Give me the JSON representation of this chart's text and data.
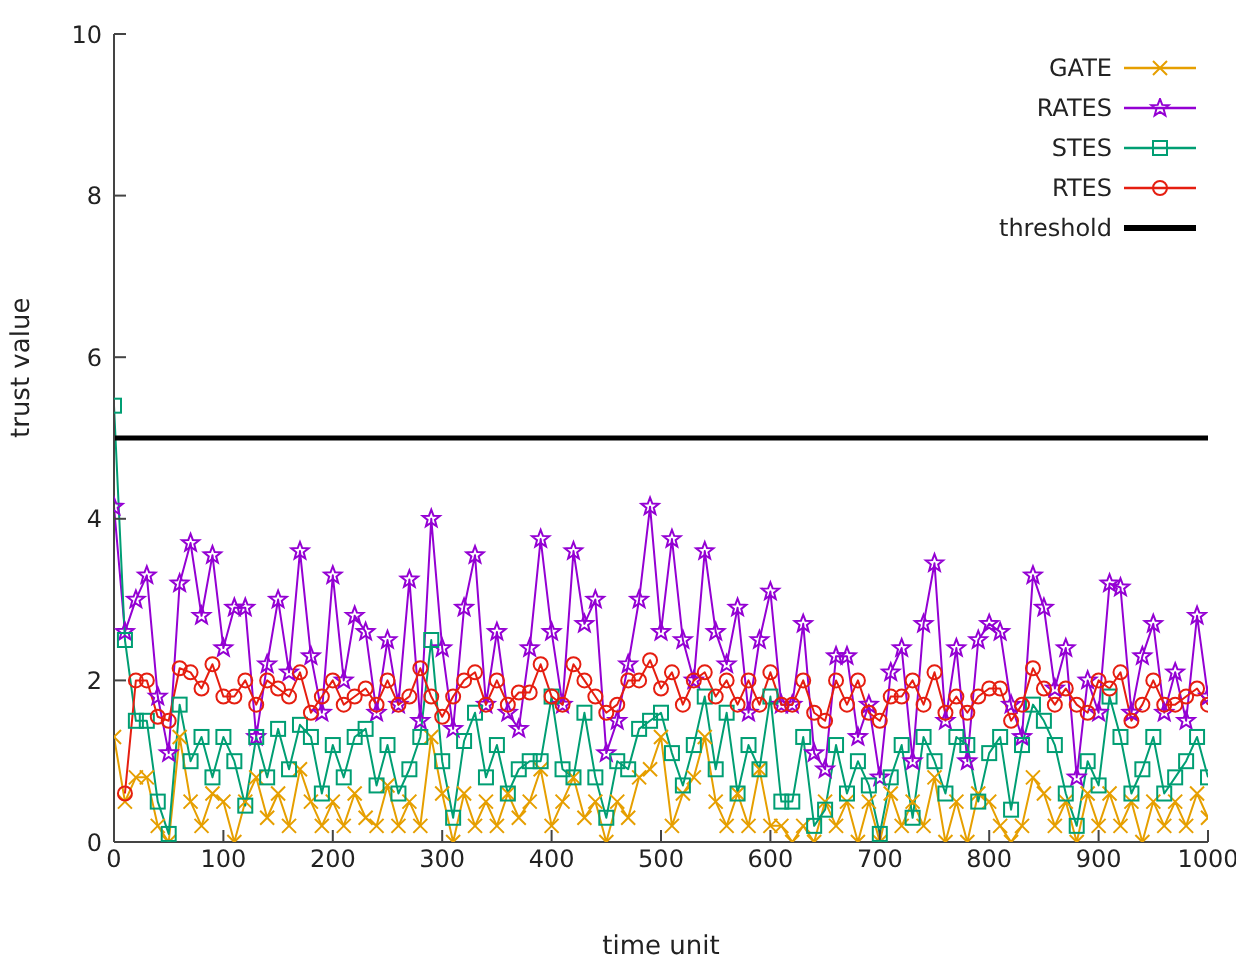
{
  "chart_data": {
    "type": "line",
    "xlabel": "time unit",
    "ylabel": "trust value",
    "xlim": [
      0,
      1000
    ],
    "ylim": [
      0,
      10
    ],
    "xticks": [
      0,
      100,
      200,
      300,
      400,
      500,
      600,
      700,
      800,
      900,
      1000
    ],
    "yticks": [
      0,
      2,
      4,
      6,
      8,
      10
    ],
    "grid": false,
    "legend": "top right",
    "line_style": "solid",
    "x": [
      0,
      10,
      20,
      30,
      40,
      50,
      60,
      70,
      80,
      90,
      100,
      110,
      120,
      130,
      140,
      150,
      160,
      170,
      180,
      190,
      200,
      210,
      220,
      230,
      240,
      250,
      260,
      270,
      280,
      290,
      300,
      310,
      320,
      330,
      340,
      350,
      360,
      370,
      380,
      390,
      400,
      410,
      420,
      430,
      440,
      450,
      460,
      470,
      480,
      490,
      500,
      510,
      520,
      530,
      540,
      550,
      560,
      570,
      580,
      590,
      600,
      610,
      620,
      630,
      640,
      650,
      660,
      670,
      680,
      690,
      700,
      710,
      720,
      730,
      740,
      750,
      760,
      770,
      780,
      790,
      800,
      810,
      820,
      830,
      840,
      850,
      860,
      870,
      880,
      890,
      900,
      910,
      920,
      930,
      940,
      950,
      960,
      970,
      980,
      990,
      1000
    ],
    "series": [
      {
        "name": "GATE",
        "color": "#e69f00",
        "marker": "cross",
        "values": [
          1.3,
          0.5,
          0.8,
          0.8,
          0.2,
          0.0,
          1.3,
          0.5,
          0.2,
          0.6,
          0.5,
          0.0,
          0.5,
          0.8,
          0.3,
          0.6,
          0.2,
          0.9,
          0.5,
          0.2,
          0.5,
          0.2,
          0.6,
          0.3,
          0.2,
          0.7,
          0.2,
          0.5,
          0.2,
          1.3,
          0.6,
          0.0,
          0.6,
          0.2,
          0.5,
          0.2,
          0.6,
          0.3,
          0.5,
          0.9,
          0.2,
          0.5,
          0.8,
          0.3,
          0.5,
          0.0,
          0.5,
          0.3,
          0.8,
          0.9,
          1.3,
          0.2,
          0.6,
          0.8,
          1.3,
          0.5,
          0.2,
          0.6,
          0.2,
          0.9,
          0.2,
          0.2,
          0.0,
          0.2,
          0.0,
          0.5,
          0.2,
          0.5,
          0.0,
          0.5,
          0.0,
          0.6,
          0.2,
          0.5,
          0.2,
          0.8,
          0.0,
          0.5,
          0.0,
          0.6,
          0.5,
          0.2,
          0.0,
          0.2,
          0.8,
          0.6,
          0.2,
          0.5,
          0.0,
          0.6,
          0.2,
          0.6,
          0.2,
          0.5,
          0.0,
          0.5,
          0.2,
          0.5,
          0.2,
          0.6,
          0.3
        ]
      },
      {
        "name": "RATES",
        "color": "#9400d3",
        "marker": "star",
        "values": [
          4.15,
          2.6,
          3.0,
          3.3,
          1.8,
          1.1,
          3.2,
          3.7,
          2.8,
          3.55,
          2.4,
          2.9,
          2.9,
          1.3,
          2.2,
          3.0,
          2.1,
          3.6,
          2.3,
          1.6,
          3.3,
          2.0,
          2.8,
          2.6,
          1.6,
          2.5,
          1.7,
          3.25,
          1.5,
          4.0,
          2.4,
          1.4,
          2.9,
          3.55,
          1.7,
          2.6,
          1.6,
          1.4,
          2.4,
          3.75,
          2.6,
          1.7,
          3.6,
          2.7,
          3.0,
          1.1,
          1.5,
          2.2,
          3.0,
          4.15,
          2.6,
          3.75,
          2.5,
          2.0,
          3.6,
          2.6,
          2.2,
          2.9,
          1.6,
          2.5,
          3.1,
          1.7,
          1.7,
          2.7,
          1.1,
          0.9,
          2.3,
          2.3,
          1.3,
          1.7,
          0.8,
          2.1,
          2.4,
          1.0,
          2.7,
          3.45,
          1.5,
          2.4,
          1.0,
          2.5,
          2.7,
          2.6,
          1.7,
          1.3,
          3.3,
          2.9,
          1.9,
          2.4,
          0.8,
          2.0,
          1.6,
          3.2,
          3.15,
          1.6,
          2.3,
          2.7,
          1.6,
          2.1,
          1.5,
          2.8,
          1.8
        ]
      },
      {
        "name": "STES",
        "color": "#009e73",
        "marker": "square",
        "values": [
          5.4,
          2.5,
          1.5,
          1.5,
          0.5,
          0.1,
          1.7,
          1.0,
          1.3,
          0.8,
          1.3,
          1.0,
          0.45,
          1.3,
          0.8,
          1.4,
          0.9,
          1.45,
          1.3,
          0.6,
          1.2,
          0.8,
          1.3,
          1.4,
          0.7,
          1.2,
          0.6,
          0.9,
          1.3,
          2.5,
          1.0,
          0.3,
          1.25,
          1.6,
          0.8,
          1.2,
          0.6,
          0.9,
          1.0,
          1.0,
          1.8,
          0.9,
          0.8,
          1.6,
          0.8,
          0.3,
          1.0,
          0.9,
          1.4,
          1.5,
          1.6,
          1.1,
          0.7,
          1.2,
          1.8,
          0.9,
          1.6,
          0.6,
          1.2,
          0.9,
          1.8,
          0.5,
          0.5,
          1.3,
          0.2,
          0.4,
          1.2,
          0.6,
          1.0,
          0.7,
          0.1,
          0.8,
          1.2,
          0.3,
          1.3,
          1.0,
          0.6,
          1.3,
          1.2,
          0.5,
          1.1,
          1.3,
          0.4,
          1.2,
          1.7,
          1.5,
          1.2,
          0.6,
          0.2,
          1.0,
          0.7,
          1.8,
          1.3,
          0.6,
          0.9,
          1.3,
          0.6,
          0.8,
          1.0,
          1.3,
          0.8
        ]
      },
      {
        "name": "RTES",
        "color": "#e51e10",
        "marker": "circle",
        "values": [
          null,
          0.6,
          2.0,
          2.0,
          1.55,
          1.5,
          2.15,
          2.1,
          1.9,
          2.2,
          1.8,
          1.8,
          2.0,
          1.7,
          2.0,
          1.9,
          1.8,
          2.1,
          1.6,
          1.8,
          2.0,
          1.7,
          1.8,
          1.9,
          1.7,
          2.0,
          1.7,
          1.8,
          2.15,
          1.8,
          1.55,
          1.8,
          2.0,
          2.1,
          1.7,
          2.0,
          1.7,
          1.85,
          1.85,
          2.2,
          1.8,
          1.7,
          2.2,
          2.0,
          1.8,
          1.6,
          1.7,
          2.0,
          2.0,
          2.25,
          1.9,
          2.1,
          1.7,
          2.0,
          2.1,
          1.8,
          2.0,
          1.7,
          2.0,
          1.7,
          2.1,
          1.7,
          1.7,
          2.0,
          1.6,
          1.5,
          2.0,
          1.7,
          2.0,
          1.6,
          1.5,
          1.8,
          1.8,
          2.0,
          1.7,
          2.1,
          1.6,
          1.8,
          1.6,
          1.8,
          1.9,
          1.9,
          1.5,
          1.7,
          2.15,
          1.9,
          1.7,
          1.9,
          1.7,
          1.6,
          2.0,
          1.9,
          2.1,
          1.5,
          1.7,
          2.0,
          1.7,
          1.7,
          1.8,
          1.9,
          1.7
        ]
      },
      {
        "name": "threshold",
        "color": "#000000",
        "marker": "none",
        "x": [
          0,
          1000
        ],
        "values": [
          5,
          5
        ]
      }
    ]
  }
}
